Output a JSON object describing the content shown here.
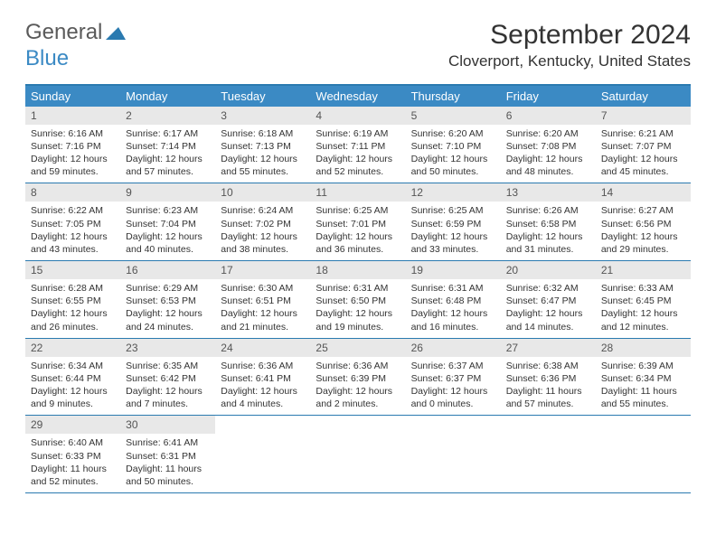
{
  "logo": {
    "text1": "General",
    "text2": "Blue"
  },
  "title": "September 2024",
  "location": "Cloverport, Kentucky, United States",
  "colors": {
    "header_bg": "#3b8ac4",
    "border": "#2a7ab0",
    "daynum_bg": "#e8e8e8",
    "text": "#333333"
  },
  "day_names": [
    "Sunday",
    "Monday",
    "Tuesday",
    "Wednesday",
    "Thursday",
    "Friday",
    "Saturday"
  ],
  "weeks": [
    [
      {
        "n": "1",
        "sr": "Sunrise: 6:16 AM",
        "ss": "Sunset: 7:16 PM",
        "dl": "Daylight: 12 hours and 59 minutes."
      },
      {
        "n": "2",
        "sr": "Sunrise: 6:17 AM",
        "ss": "Sunset: 7:14 PM",
        "dl": "Daylight: 12 hours and 57 minutes."
      },
      {
        "n": "3",
        "sr": "Sunrise: 6:18 AM",
        "ss": "Sunset: 7:13 PM",
        "dl": "Daylight: 12 hours and 55 minutes."
      },
      {
        "n": "4",
        "sr": "Sunrise: 6:19 AM",
        "ss": "Sunset: 7:11 PM",
        "dl": "Daylight: 12 hours and 52 minutes."
      },
      {
        "n": "5",
        "sr": "Sunrise: 6:20 AM",
        "ss": "Sunset: 7:10 PM",
        "dl": "Daylight: 12 hours and 50 minutes."
      },
      {
        "n": "6",
        "sr": "Sunrise: 6:20 AM",
        "ss": "Sunset: 7:08 PM",
        "dl": "Daylight: 12 hours and 48 minutes."
      },
      {
        "n": "7",
        "sr": "Sunrise: 6:21 AM",
        "ss": "Sunset: 7:07 PM",
        "dl": "Daylight: 12 hours and 45 minutes."
      }
    ],
    [
      {
        "n": "8",
        "sr": "Sunrise: 6:22 AM",
        "ss": "Sunset: 7:05 PM",
        "dl": "Daylight: 12 hours and 43 minutes."
      },
      {
        "n": "9",
        "sr": "Sunrise: 6:23 AM",
        "ss": "Sunset: 7:04 PM",
        "dl": "Daylight: 12 hours and 40 minutes."
      },
      {
        "n": "10",
        "sr": "Sunrise: 6:24 AM",
        "ss": "Sunset: 7:02 PM",
        "dl": "Daylight: 12 hours and 38 minutes."
      },
      {
        "n": "11",
        "sr": "Sunrise: 6:25 AM",
        "ss": "Sunset: 7:01 PM",
        "dl": "Daylight: 12 hours and 36 minutes."
      },
      {
        "n": "12",
        "sr": "Sunrise: 6:25 AM",
        "ss": "Sunset: 6:59 PM",
        "dl": "Daylight: 12 hours and 33 minutes."
      },
      {
        "n": "13",
        "sr": "Sunrise: 6:26 AM",
        "ss": "Sunset: 6:58 PM",
        "dl": "Daylight: 12 hours and 31 minutes."
      },
      {
        "n": "14",
        "sr": "Sunrise: 6:27 AM",
        "ss": "Sunset: 6:56 PM",
        "dl": "Daylight: 12 hours and 29 minutes."
      }
    ],
    [
      {
        "n": "15",
        "sr": "Sunrise: 6:28 AM",
        "ss": "Sunset: 6:55 PM",
        "dl": "Daylight: 12 hours and 26 minutes."
      },
      {
        "n": "16",
        "sr": "Sunrise: 6:29 AM",
        "ss": "Sunset: 6:53 PM",
        "dl": "Daylight: 12 hours and 24 minutes."
      },
      {
        "n": "17",
        "sr": "Sunrise: 6:30 AM",
        "ss": "Sunset: 6:51 PM",
        "dl": "Daylight: 12 hours and 21 minutes."
      },
      {
        "n": "18",
        "sr": "Sunrise: 6:31 AM",
        "ss": "Sunset: 6:50 PM",
        "dl": "Daylight: 12 hours and 19 minutes."
      },
      {
        "n": "19",
        "sr": "Sunrise: 6:31 AM",
        "ss": "Sunset: 6:48 PM",
        "dl": "Daylight: 12 hours and 16 minutes."
      },
      {
        "n": "20",
        "sr": "Sunrise: 6:32 AM",
        "ss": "Sunset: 6:47 PM",
        "dl": "Daylight: 12 hours and 14 minutes."
      },
      {
        "n": "21",
        "sr": "Sunrise: 6:33 AM",
        "ss": "Sunset: 6:45 PM",
        "dl": "Daylight: 12 hours and 12 minutes."
      }
    ],
    [
      {
        "n": "22",
        "sr": "Sunrise: 6:34 AM",
        "ss": "Sunset: 6:44 PM",
        "dl": "Daylight: 12 hours and 9 minutes."
      },
      {
        "n": "23",
        "sr": "Sunrise: 6:35 AM",
        "ss": "Sunset: 6:42 PM",
        "dl": "Daylight: 12 hours and 7 minutes."
      },
      {
        "n": "24",
        "sr": "Sunrise: 6:36 AM",
        "ss": "Sunset: 6:41 PM",
        "dl": "Daylight: 12 hours and 4 minutes."
      },
      {
        "n": "25",
        "sr": "Sunrise: 6:36 AM",
        "ss": "Sunset: 6:39 PM",
        "dl": "Daylight: 12 hours and 2 minutes."
      },
      {
        "n": "26",
        "sr": "Sunrise: 6:37 AM",
        "ss": "Sunset: 6:37 PM",
        "dl": "Daylight: 12 hours and 0 minutes."
      },
      {
        "n": "27",
        "sr": "Sunrise: 6:38 AM",
        "ss": "Sunset: 6:36 PM",
        "dl": "Daylight: 11 hours and 57 minutes."
      },
      {
        "n": "28",
        "sr": "Sunrise: 6:39 AM",
        "ss": "Sunset: 6:34 PM",
        "dl": "Daylight: 11 hours and 55 minutes."
      }
    ],
    [
      {
        "n": "29",
        "sr": "Sunrise: 6:40 AM",
        "ss": "Sunset: 6:33 PM",
        "dl": "Daylight: 11 hours and 52 minutes."
      },
      {
        "n": "30",
        "sr": "Sunrise: 6:41 AM",
        "ss": "Sunset: 6:31 PM",
        "dl": "Daylight: 11 hours and 50 minutes."
      },
      null,
      null,
      null,
      null,
      null
    ]
  ]
}
